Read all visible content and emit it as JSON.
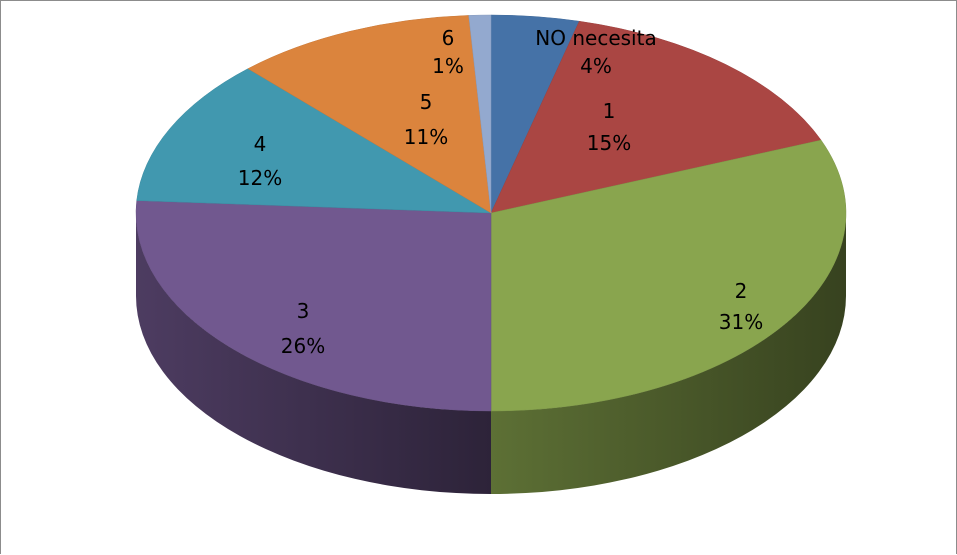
{
  "chart_data": {
    "type": "pie",
    "style": "3d",
    "categories": [
      "NO necesita",
      "1",
      "2",
      "3",
      "4",
      "5",
      "6"
    ],
    "values": [
      4,
      15,
      31,
      26,
      12,
      11,
      1
    ],
    "labels": [
      {
        "name": "NO necesita",
        "percent": "4%"
      },
      {
        "name": "1",
        "percent": "15%"
      },
      {
        "name": "2",
        "percent": "31%"
      },
      {
        "name": "3",
        "percent": "26%"
      },
      {
        "name": "4",
        "percent": "12%"
      },
      {
        "name": "5",
        "percent": "11%"
      },
      {
        "name": "6",
        "percent": "1%"
      }
    ],
    "colors": [
      "#4572A7",
      "#AA4643",
      "#89A54E",
      "#71588F",
      "#4198AF",
      "#DB843D",
      "#93A9CF"
    ],
    "legend": "none",
    "title": ""
  }
}
